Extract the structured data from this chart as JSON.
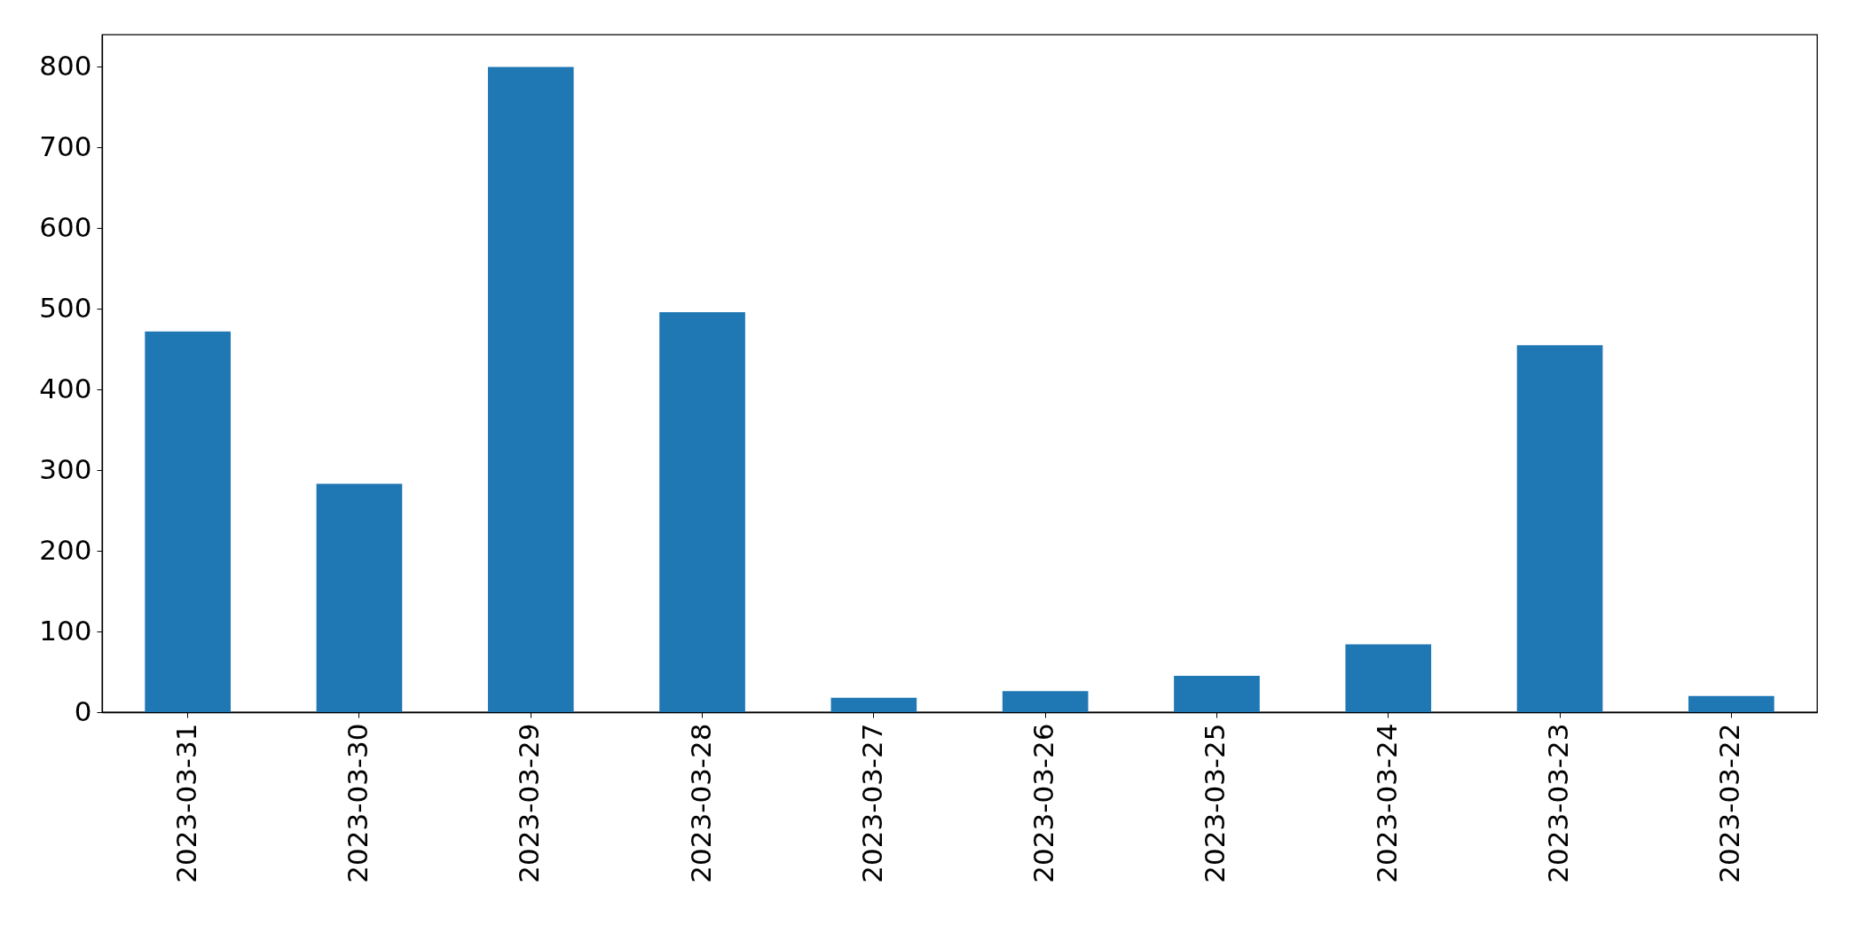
{
  "chart_data": {
    "type": "bar",
    "categories": [
      "2023-03-31",
      "2023-03-30",
      "2023-03-29",
      "2023-03-28",
      "2023-03-27",
      "2023-03-26",
      "2023-03-25",
      "2023-03-24",
      "2023-03-23",
      "2023-03-22"
    ],
    "values": [
      472,
      283,
      800,
      496,
      18,
      26,
      45,
      84,
      455,
      20
    ],
    "color": "#1f77b4",
    "ylim": [
      0,
      840
    ],
    "yticks": [
      0,
      100,
      200,
      300,
      400,
      500,
      600,
      700,
      800
    ],
    "grid": false
  }
}
